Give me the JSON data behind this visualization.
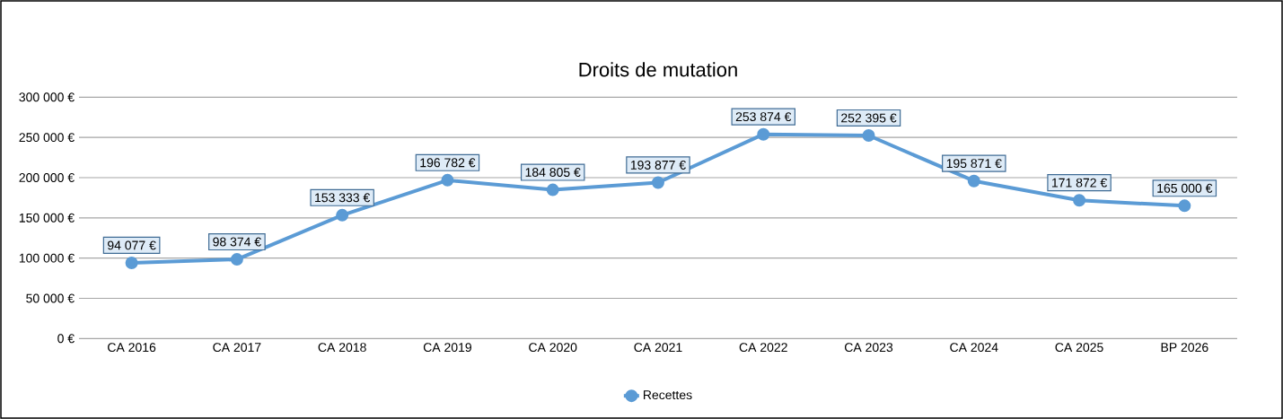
{
  "chart_data": {
    "type": "line",
    "title": "Droits de mutation",
    "categories": [
      "CA 2016",
      "CA 2017",
      "CA 2018",
      "CA 2019",
      "CA 2020",
      "CA 2021",
      "CA 2022",
      "CA 2023",
      "CA 2024",
      "CA 2025",
      "BP 2026"
    ],
    "series": [
      {
        "name": "Recettes",
        "color": "#5b9bd5",
        "values": [
          94077,
          98374,
          153333,
          196782,
          184805,
          193877,
          253874,
          252395,
          195871,
          171872,
          165000
        ],
        "value_labels": [
          "94 077 €",
          "98 374 €",
          "153 333 €",
          "196 782 €",
          "184 805 €",
          "193 877 €",
          "253 874 €",
          "252 395 €",
          "195 871 €",
          "171 872 €",
          "165 000 €"
        ]
      }
    ],
    "ylim": [
      0,
      300000
    ],
    "yticks": [
      {
        "value": 0,
        "label": "0 €"
      },
      {
        "value": 50000,
        "label": "50 000 €"
      },
      {
        "value": 100000,
        "label": "100 000 €"
      },
      {
        "value": 150000,
        "label": "150 000 €"
      },
      {
        "value": 200000,
        "label": "200 000 €"
      },
      {
        "value": 250000,
        "label": "250 000 €"
      },
      {
        "value": 300000,
        "label": "300 000 €"
      }
    ],
    "grid": "y",
    "legend": "bottom",
    "marker": "circle",
    "line_style": "solid"
  }
}
